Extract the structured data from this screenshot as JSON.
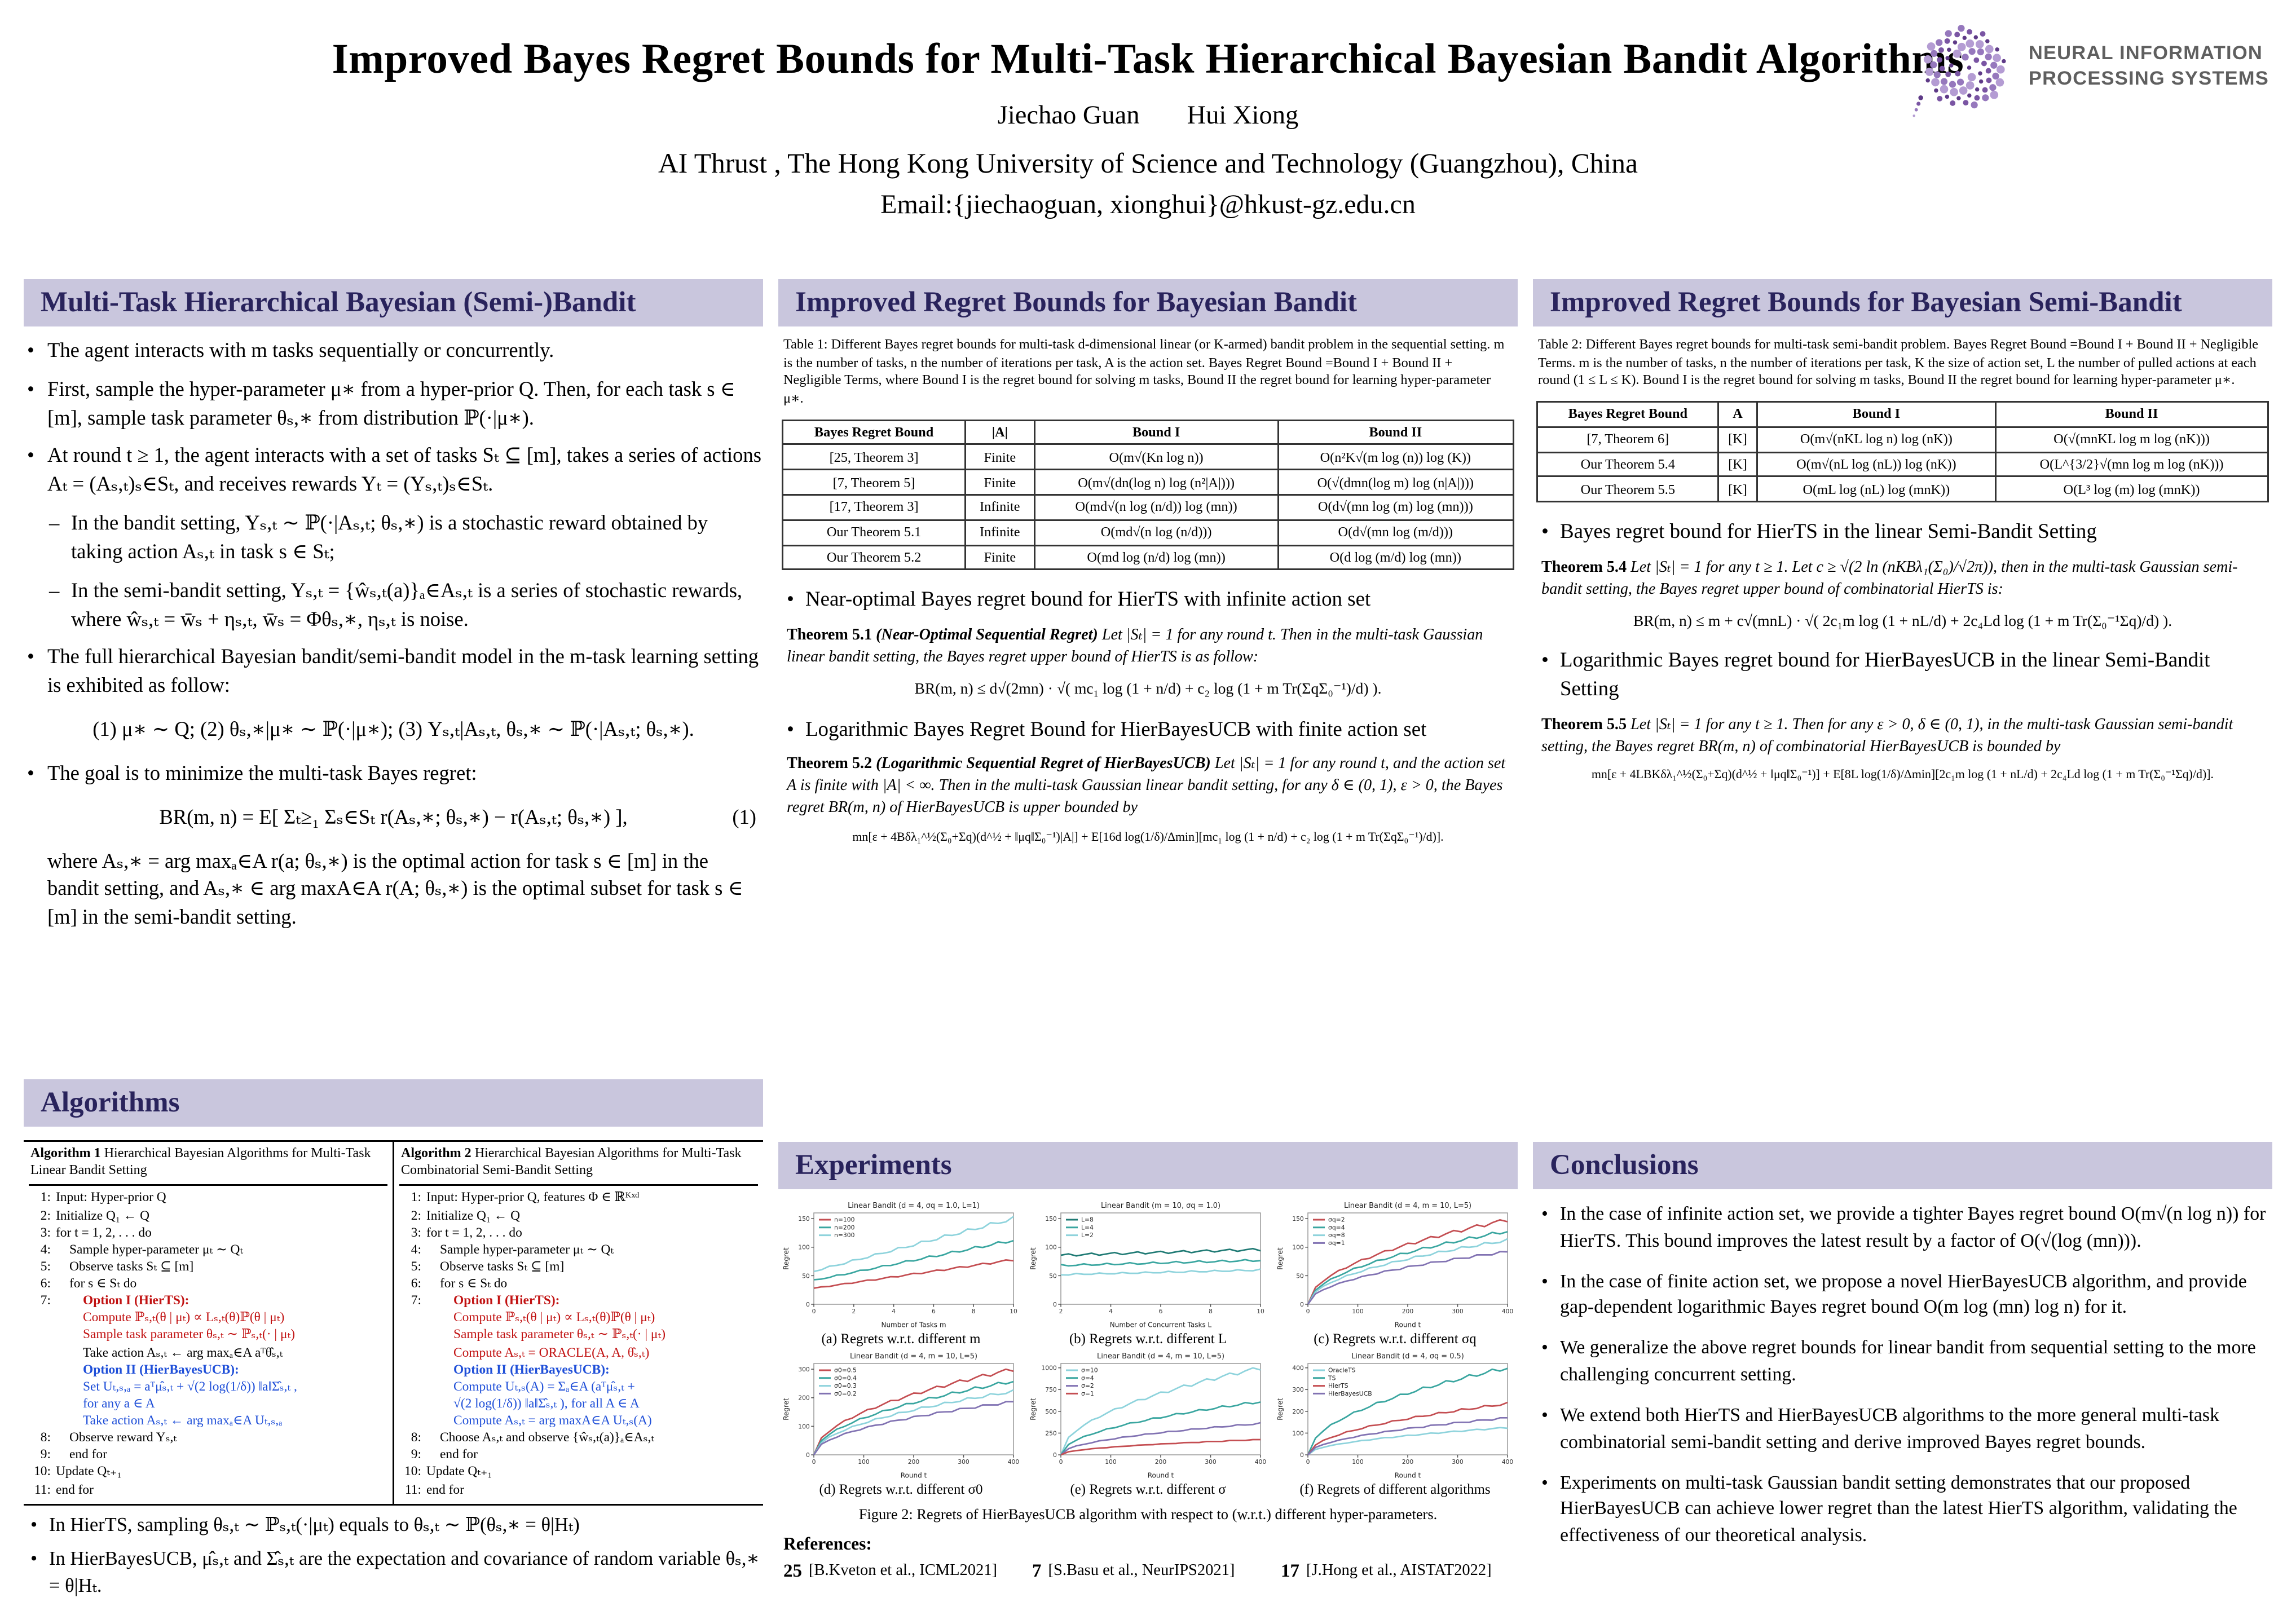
{
  "header": {
    "title": "Improved Bayes Regret Bounds for Multi-Task Hierarchical Bayesian Bandit Algorithms",
    "author1": "Jiechao Guan",
    "author2": "Hui Xiong",
    "affiliation": "AI Thrust , The Hong Kong University of Science and Technology (Guangzhou), China",
    "email": "Email:{jiechaoguan, xionghui}@hkust-gz.edu.cn",
    "logo_line1": "NEURAL INFORMATION",
    "logo_line2": "PROCESSING SYSTEMS"
  },
  "model": {
    "title": "Multi-Task Hierarchical Bayesian (Semi-)Bandit",
    "items": [
      {
        "cls": "b1",
        "text": "The agent interacts with m tasks sequentially or concurrently."
      },
      {
        "cls": "b1",
        "text": "First, sample the hyper-parameter μ∗ from a hyper-prior Q. Then, for each task s ∈ [m], sample task parameter θₛ,∗ from distribution ℙ(·|μ∗)."
      },
      {
        "cls": "b1",
        "text": "At round t ≥ 1, the agent interacts with a set of tasks Sₜ ⊆ [m], takes a series of actions Aₜ = (Aₛ,ₜ)ₛ∈Sₜ, and receives rewards Yₜ = (Yₛ,ₜ)ₛ∈Sₜ."
      },
      {
        "cls": "b2",
        "text": "In the bandit setting, Yₛ,ₜ ∼ ℙ(·|Aₛ,ₜ; θₛ,∗) is a stochastic reward obtained by taking action Aₛ,ₜ in task s ∈ Sₜ;"
      },
      {
        "cls": "b2",
        "text": "In the semi-bandit setting, Yₛ,ₜ = {ŵₛ,ₜ(a)}ₐ∈Aₛ,ₜ is a series of stochastic rewards, where ŵₛ,ₜ = w̄ₛ + ηₛ,ₜ, w̄ₛ = Φθₛ,∗, ηₛ,ₜ is noise."
      },
      {
        "cls": "b1",
        "text": "The full hierarchical Bayesian bandit/semi-bandit model in the m-task learning setting is exhibited as follow:"
      },
      {
        "cls": "eq",
        "text": "(1) μ∗ ∼ Q;   (2) θₛ,∗|μ∗ ∼ ℙ(·|μ∗);   (3) Yₛ,ₜ|Aₛ,ₜ, θₛ,∗ ∼ ℙ(·|Aₛ,ₜ; θₛ,∗)."
      },
      {
        "cls": "b1",
        "text": "The goal is to minimize the multi-task Bayes regret:"
      },
      {
        "cls": "eq",
        "text": "BR(m, n) = E[ Σₜ≥₁ Σₛ∈Sₜ r(Aₛ,∗; θₛ,∗) − r(Aₛ,ₜ; θₛ,∗) ],",
        "tag": "(1)"
      },
      {
        "cls": "plain",
        "text": "where Aₛ,∗ = arg maxₐ∈A r(a; θₛ,∗) is the optimal action for task s ∈ [m] in the bandit setting, and Aₛ,∗ ∈ arg maxA∈A r(A; θₛ,∗) is the optimal subset for task s ∈ [m] in the semi-bandit setting."
      }
    ]
  },
  "algorithms": {
    "title": "Algorithms",
    "alg1": {
      "label": "Algorithm 1",
      "caption": "Hierarchical Bayesian Algorithms for Multi-Task Linear Bandit Setting",
      "lines": [
        {
          "n": "1:",
          "c": "",
          "t": "Input: Hyper-prior Q"
        },
        {
          "n": "2:",
          "c": "",
          "t": "Initialize Q₁ ← Q"
        },
        {
          "n": "3:",
          "c": "",
          "t": "for t = 1, 2, . . . do"
        },
        {
          "n": "4:",
          "c": "i1",
          "t": "Sample hyper-parameter μₜ ∼ Qₜ"
        },
        {
          "n": "5:",
          "c": "i1",
          "t": "Observe tasks Sₜ ⊆ [m]"
        },
        {
          "n": "6:",
          "c": "i1",
          "t": "for s ∈ Sₜ do"
        },
        {
          "n": "7:",
          "c": "i2 red bold",
          "t": "Option I (HierTS):"
        },
        {
          "n": "",
          "c": "i2 red",
          "t": "Compute ℙₛ,ₜ(θ | μₜ) ∝ Lₛ,ₜ(θ)ℙ(θ | μₜ)"
        },
        {
          "n": "",
          "c": "i2 red",
          "t": "Sample task parameter θₛ,ₜ ∼ ℙₛ,ₜ(· | μₜ)"
        },
        {
          "n": "",
          "c": "i2",
          "t": "Take action Aₛ,ₜ ← arg maxₐ∈A aᵀθ̂ₛ,ₜ"
        },
        {
          "n": "",
          "c": "i2 blue bold",
          "t": "Option II (HierBayesUCB):"
        },
        {
          "n": "",
          "c": "i2 blue",
          "t": "Set Uₜ,ₛ,ₐ = aᵀμ̂ₛ,ₜ + √(2 log(1/δ)) ‖a‖Σ̂ₛ,ₜ ,"
        },
        {
          "n": "",
          "c": "i2 blue",
          "t": "for any a ∈ A"
        },
        {
          "n": "",
          "c": "i2 blue",
          "t": "Take action Aₛ,ₜ ← arg maxₐ∈A Uₜ,ₛ,ₐ"
        },
        {
          "n": "8:",
          "c": "i1",
          "t": "Observe reward Yₛ,ₜ"
        },
        {
          "n": "9:",
          "c": "i1",
          "t": "end for"
        },
        {
          "n": "10:",
          "c": "",
          "t": "Update Qₜ₊₁"
        },
        {
          "n": "11:",
          "c": "",
          "t": "end for"
        }
      ]
    },
    "alg2": {
      "label": "Algorithm 2",
      "caption": "Hierarchical Bayesian Algorithms for Multi-Task Combinatorial Semi-Bandit Setting",
      "lines": [
        {
          "n": "1:",
          "c": "",
          "t": "Input: Hyper-prior Q, features Φ ∈ ℝᴷˣᵈ"
        },
        {
          "n": "2:",
          "c": "",
          "t": "Initialize Q₁ ← Q"
        },
        {
          "n": "3:",
          "c": "",
          "t": "for t = 1, 2, . . . do"
        },
        {
          "n": "4:",
          "c": "i1",
          "t": "Sample hyper-parameter μₜ ∼ Qₜ"
        },
        {
          "n": "5:",
          "c": "i1",
          "t": "Observe tasks Sₜ ⊆ [m]"
        },
        {
          "n": "6:",
          "c": "i1",
          "t": "for s ∈ Sₜ do"
        },
        {
          "n": "7:",
          "c": "i2 red bold",
          "t": "Option I (HierTS):"
        },
        {
          "n": "",
          "c": "i2 red",
          "t": "Compute ℙₛ,ₜ(θ | μₜ) ∝ Lₛ,ₜ(θ)ℙ(θ | μₜ)"
        },
        {
          "n": "",
          "c": "i2 red",
          "t": "Sample task parameter θₛ,ₜ ∼ ℙₛ,ₜ(· | μₜ)"
        },
        {
          "n": "",
          "c": "i2 red",
          "t": "Compute Aₛ,ₜ = ORACLE(A, A, θ̂ₛ,ₜ)"
        },
        {
          "n": "",
          "c": "i2 blue bold",
          "t": "Option II (HierBayesUCB):"
        },
        {
          "n": "",
          "c": "i2 blue",
          "t": "Compute Uₜ,ₛ(A) = Σₐ∈A (aᵀμ̂ₛ,ₜ +"
        },
        {
          "n": "",
          "c": "i2 blue",
          "t": "√(2 log(1/δ)) ‖a‖Σ̂ₛ,ₜ ), for all A ∈ A"
        },
        {
          "n": "",
          "c": "i2 blue",
          "t": "Compute Aₛ,ₜ = arg maxA∈A Uₜ,ₛ(A)"
        },
        {
          "n": "8:",
          "c": "i1",
          "t": "Choose Aₛ,ₜ and observe {ŵₛ,ₜ(a)}ₐ∈Aₛ,ₜ"
        },
        {
          "n": "9:",
          "c": "i1",
          "t": "end for"
        },
        {
          "n": "10:",
          "c": "",
          "t": "Update Qₜ₊₁"
        },
        {
          "n": "11:",
          "c": "",
          "t": "end for"
        }
      ]
    },
    "notes": [
      "In HierTS, sampling θₛ,ₜ ∼ ℙₛ,ₜ(·|μₜ) equals to θₛ,ₜ ∼ ℙ(θₛ,∗ = θ|Hₜ)",
      "In HierBayesUCB, μ̂ₛ,ₜ and Σ̂ₛ,ₜ are the expectation and covariance of random variable θₛ,∗ = θ|Hₜ."
    ]
  },
  "bandit": {
    "title": "Improved Regret Bounds for Bayesian Bandit",
    "table_caption": "Table 1: Different Bayes regret bounds for multi-task d-dimensional linear (or K-armed) bandit problem in the sequential setting. m is the number of tasks, n the number of iterations per task, A is the action set. Bayes Regret Bound =Bound I + Bound II + Negligible Terms, where Bound I is the regret bound for solving m tasks, Bound II the regret bound for learning hyper-parameter μ∗.",
    "table": {
      "headers": [
        "Bayes Regret Bound",
        "|A|",
        "Bound I",
        "Bound II"
      ],
      "rows": [
        {
          "c0": "[25, Theorem 3]",
          "c1": "Finite",
          "c2": "O(m√(Kn log n))",
          "c3": "O(n²K√(m log (n)) log (K))"
        },
        {
          "c0": "[7, Theorem 5]",
          "c1": "Finite",
          "c2": "O(m√(dn(log n) log (n²|A|)))",
          "c3": "O(√(dmn(log m) log (n|A|)))"
        },
        {
          "c0": "[17, Theorem 3]",
          "c1": "Infinite",
          "c2": "O(md√(n log (n/d)) log (mn))",
          "c3": "O(d√(mn log (m) log (mn)))"
        },
        {
          "c0": "Our Theorem 5.1",
          "c1": "Infinite",
          "c2": "O(md√(n log (n/d)))",
          "c3": "O(d√(mn log (m/d)))"
        },
        {
          "c0": "Our Theorem 5.2",
          "c1": "Finite",
          "c2": "O(md log (n/d) log (mn))",
          "c3": "O(d log (m/d) log (mn))"
        }
      ]
    },
    "bullet1": "Near-optimal Bayes regret bound for HierTS with infinite action set",
    "thm51": {
      "label": "Theorem 5.1",
      "name": "(Near-Optimal Sequential Regret)",
      "body": "Let |Sₜ| = 1 for any round t. Then in the multi-task Gaussian linear bandit setting, the Bayes regret upper bound of HierTS is as follow:",
      "eq": "BR(m, n) ≤ d√(2mn) · √( mc₁ log (1 + n/d) + c₂ log (1 + m Tr(ΣqΣ₀⁻¹)/d) )."
    },
    "bullet2": "Logarithmic Bayes Regret Bound for HierBayesUCB with finite action set",
    "thm52": {
      "label": "Theorem 5.2",
      "name": "(Logarithmic Sequential Regret of HierBayesUCB)",
      "body": "Let |Sₜ| = 1 for any round t, and the action set A is finite with |A| < ∞. Then in the multi-task Gaussian linear bandit setting, for any δ ∈ (0, 1), ε > 0, the Bayes regret BR(m, n) of HierBayesUCB is upper bounded by",
      "eq": "mn[ε + 4Bδλ₁^½(Σ₀+Σq)(d^½ + ‖μq‖Σ₀⁻¹)|A|] + E[16d log(1/δ)/Δmin][mc₁ log (1 + n/d) + c₂ log (1 + m Tr(ΣqΣ₀⁻¹)/d)]."
    }
  },
  "experiments": {
    "title": "Experiments",
    "figure_caption": "Figure 2: Regrets of HierBayesUCB algorithm with respect to (w.r.t.) different hyper-parameters.",
    "references_label": "References:",
    "references": [
      {
        "num": "25",
        "text": "[B.Kveton et al., ICML2021]"
      },
      {
        "num": "7",
        "text": "[S.Basu et al., NeurIPS2021]"
      },
      {
        "num": "17",
        "text": "[J.Hong et al., AISTAT2022]"
      }
    ],
    "plots": [
      {
        "type": "line",
        "title": "Linear Bandit (d = 4, σq = 1.0, L=1)",
        "caption": "(a) Regrets w.r.t. different m",
        "xlabel": "Number of Tasks m",
        "ylabel": "Regret",
        "xmin": 0,
        "xmax": 10,
        "xticks": [
          0,
          2,
          4,
          6,
          8,
          10
        ],
        "ymin": 0,
        "ymax": 160,
        "yticks": [
          0,
          50,
          100,
          150
        ],
        "series": [
          {
            "label": "n=100",
            "color": "#c44e52",
            "shape": "lin",
            "start": 28,
            "end": 78
          },
          {
            "label": "n=200",
            "color": "#3aa6a0",
            "shape": "lin",
            "start": 42,
            "end": 112
          },
          {
            "label": "n=300",
            "color": "#8ed3dc",
            "shape": "lin",
            "start": 58,
            "end": 150
          }
        ]
      },
      {
        "type": "line",
        "title": "Linear Bandit (m = 10, σq = 1.0)",
        "caption": "(b) Regrets w.r.t. different L",
        "xlabel": "Number of Concurrent Tasks L",
        "ylabel": "Regret",
        "xmin": 2,
        "xmax": 10,
        "xticks": [
          2,
          4,
          6,
          8,
          10
        ],
        "ymin": 0,
        "ymax": 160,
        "yticks": [
          0,
          50,
          100,
          150
        ],
        "series": [
          {
            "label": "L=8",
            "color": "#1f7a74",
            "shape": "lin",
            "start": 86,
            "end": 96
          },
          {
            "label": "L=4",
            "color": "#3aa6a0",
            "shape": "lin",
            "start": 68,
            "end": 77
          },
          {
            "label": "L=2",
            "color": "#8ed3dc",
            "shape": "lin",
            "start": 52,
            "end": 60
          }
        ]
      },
      {
        "type": "line",
        "title": "Linear Bandit (d = 4, m = 10, L=5)",
        "caption": "(c) Regrets w.r.t. different σq",
        "xlabel": "Round t",
        "ylabel": "Regret",
        "xmin": 0,
        "xmax": 400,
        "xticks": [
          0,
          100,
          200,
          300,
          400
        ],
        "ymin": 0,
        "ymax": 160,
        "yticks": [
          0,
          50,
          100,
          150
        ],
        "series": [
          {
            "label": "σq=2",
            "color": "#c44e52",
            "shape": "sqrt",
            "start": 0,
            "end": 148
          },
          {
            "label": "σq=4",
            "color": "#3aa6a0",
            "shape": "sqrt",
            "start": 0,
            "end": 128
          },
          {
            "label": "σq=8",
            "color": "#8ed3dc",
            "shape": "sqrt",
            "start": 0,
            "end": 112
          },
          {
            "label": "σq=1",
            "color": "#8172b2",
            "shape": "sqrt",
            "start": 0,
            "end": 92
          }
        ]
      },
      {
        "type": "line",
        "title": "Linear Bandit (d = 4, m = 10, L=5)",
        "caption": "(d) Regrets w.r.t. different σ0",
        "xlabel": "Round t",
        "ylabel": "Regret",
        "xmin": 0,
        "xmax": 400,
        "xticks": [
          0,
          100,
          200,
          300,
          400
        ],
        "ymin": 0,
        "ymax": 320,
        "yticks": [
          0,
          100,
          200,
          300
        ],
        "series": [
          {
            "label": "σ0=0.5",
            "color": "#c44e52",
            "shape": "sqrt",
            "start": 0,
            "end": 300
          },
          {
            "label": "σ0=0.4",
            "color": "#3aa6a0",
            "shape": "sqrt",
            "start": 0,
            "end": 258
          },
          {
            "label": "σ0=0.3",
            "color": "#8ed3dc",
            "shape": "sqrt",
            "start": 0,
            "end": 222
          },
          {
            "label": "σ0=0.2",
            "color": "#8172b2",
            "shape": "sqrt",
            "start": 0,
            "end": 186
          }
        ]
      },
      {
        "type": "line",
        "title": "Linear Bandit (d = 4, m = 10, L=5)",
        "caption": "(e) Regrets w.r.t. different σ",
        "xlabel": "Round t",
        "ylabel": "Regret",
        "xmin": 0,
        "xmax": 400,
        "xticks": [
          0,
          100,
          200,
          300,
          400
        ],
        "ymin": 0,
        "ymax": 1050,
        "yticks": [
          0,
          250,
          500,
          750,
          1000
        ],
        "series": [
          {
            "label": "σ=10",
            "color": "#8ed3dc",
            "shape": "sqrt",
            "start": 0,
            "end": 1000
          },
          {
            "label": "σ=4",
            "color": "#3aa6a0",
            "shape": "sqrt",
            "start": 0,
            "end": 610
          },
          {
            "label": "σ=2",
            "color": "#8172b2",
            "shape": "sqrt",
            "start": 0,
            "end": 360
          },
          {
            "label": "σ=1",
            "color": "#c44e52",
            "shape": "sqrt",
            "start": 0,
            "end": 175
          }
        ]
      },
      {
        "type": "line",
        "title": "Linear Bandit (d = 4, σq = 0.5)",
        "caption": "(f) Regrets of different algorithms",
        "xlabel": "Round t",
        "ylabel": "Regret",
        "xmin": 0,
        "xmax": 400,
        "xticks": [
          0,
          100,
          200,
          300,
          400
        ],
        "ymin": 0,
        "ymax": 420,
        "yticks": [
          0,
          100,
          200,
          300,
          400
        ],
        "series": [
          {
            "label": "OracleTS",
            "color": "#8ed3dc",
            "shape": "sqrt",
            "start": 0,
            "end": 125
          },
          {
            "label": "TS",
            "color": "#3aa6a0",
            "shape": "sqrt",
            "start": 0,
            "end": 400
          },
          {
            "label": "HierTS",
            "color": "#c44e52",
            "shape": "sqrt",
            "start": 0,
            "end": 235
          },
          {
            "label": "HierBayesUCB",
            "color": "#8172b2",
            "shape": "sqrt",
            "start": 0,
            "end": 170
          }
        ]
      }
    ]
  },
  "semibandit": {
    "title": "Improved Regret Bounds for Bayesian Semi-Bandit",
    "table_caption": "Table 2: Different Bayes regret bounds for multi-task semi-bandit problem. Bayes Regret Bound =Bound I + Bound II + Negligible Terms. m is the number of tasks, n the number of iterations per task, K the size of action set, L the number of pulled actions at each round (1 ≤ L ≤ K). Bound I is the regret bound for solving m tasks, Bound II the regret bound for learning hyper-parameter μ∗.",
    "table": {
      "headers": [
        "Bayes Regret Bound",
        "A",
        "Bound I",
        "Bound II"
      ],
      "rows": [
        {
          "c0": "[7, Theorem 6]",
          "c1": "[K]",
          "c2": "O(m√(nKL log n) log (nK))",
          "c3": "O(√(mnKL log m log (nK)))"
        },
        {
          "c0": "Our Theorem 5.4",
          "c1": "[K]",
          "c2": "O(m√(nL log (nL)) log (nK))",
          "c3": "O(L^{3/2}√(mn log m log (nK)))"
        },
        {
          "c0": "Our Theorem 5.5",
          "c1": "[K]",
          "c2": "O(mL log (nL) log (mnK))",
          "c3": "O(L³ log (m) log (mnK))"
        }
      ]
    },
    "bullet1": "Bayes regret bound for HierTS in the linear Semi-Bandit Setting",
    "thm54": {
      "label": "Theorem 5.4",
      "name": "",
      "body": "Let |Sₜ| = 1 for any t ≥ 1. Let c ≥ √(2 ln (nKBλ₁(Σ₀)/√2π)), then in the multi-task Gaussian semi-bandit setting, the Bayes regret upper bound of combinatorial HierTS is:",
      "eq": "BR(m, n) ≤ m + c√(mnL) · √( 2c₁m log (1 + nL/d) + 2c₄Ld log (1 + m Tr(Σ₀⁻¹Σq)/d) )."
    },
    "bullet2": "Logarithmic Bayes regret bound for HierBayesUCB in the linear Semi-Bandit Setting",
    "thm55": {
      "label": "Theorem 5.5",
      "name": "",
      "body": "Let |Sₜ| = 1 for any t ≥ 1. Then for any ε > 0, δ ∈ (0, 1), in the multi-task Gaussian semi-bandit setting, the Bayes regret BR(m, n) of combinatorial HierBayesUCB is bounded by",
      "eq": "mn[ε + 4LBKδλ₁^½(Σ₀+Σq)(d^½ + ‖μq‖Σ₀⁻¹)] + E[8L log(1/δ)/Δmin][2c₁m log (1 + nL/d) + 2c₄Ld log (1 + m Tr(Σ₀⁻¹Σq)/d)]."
    }
  },
  "conclusions": {
    "title": "Conclusions",
    "bullets": [
      "In the case of infinite action set, we provide a tighter Bayes regret bound O(m√(n log n)) for HierTS. This bound improves the latest result by a factor of O(√(log (mn))).",
      "In the case of finite action set, we propose a novel HierBayesUCB algorithm, and provide gap-dependent logarithmic Bayes regret bound O(m log (mn) log n) for it.",
      "We generalize the above regret bounds for linear bandit from sequential setting to the more challenging concurrent setting.",
      "We extend both HierTS and HierBayesUCB algorithms to the more general multi-task combinatorial semi-bandit setting and derive improved Bayes regret bounds.",
      "Experiments on multi-task Gaussian bandit setting demonstrates that our proposed HierBayesUCB can achieve lower regret than the latest HierTS algorithm, validating the effectiveness of our theoretical analysis."
    ]
  }
}
